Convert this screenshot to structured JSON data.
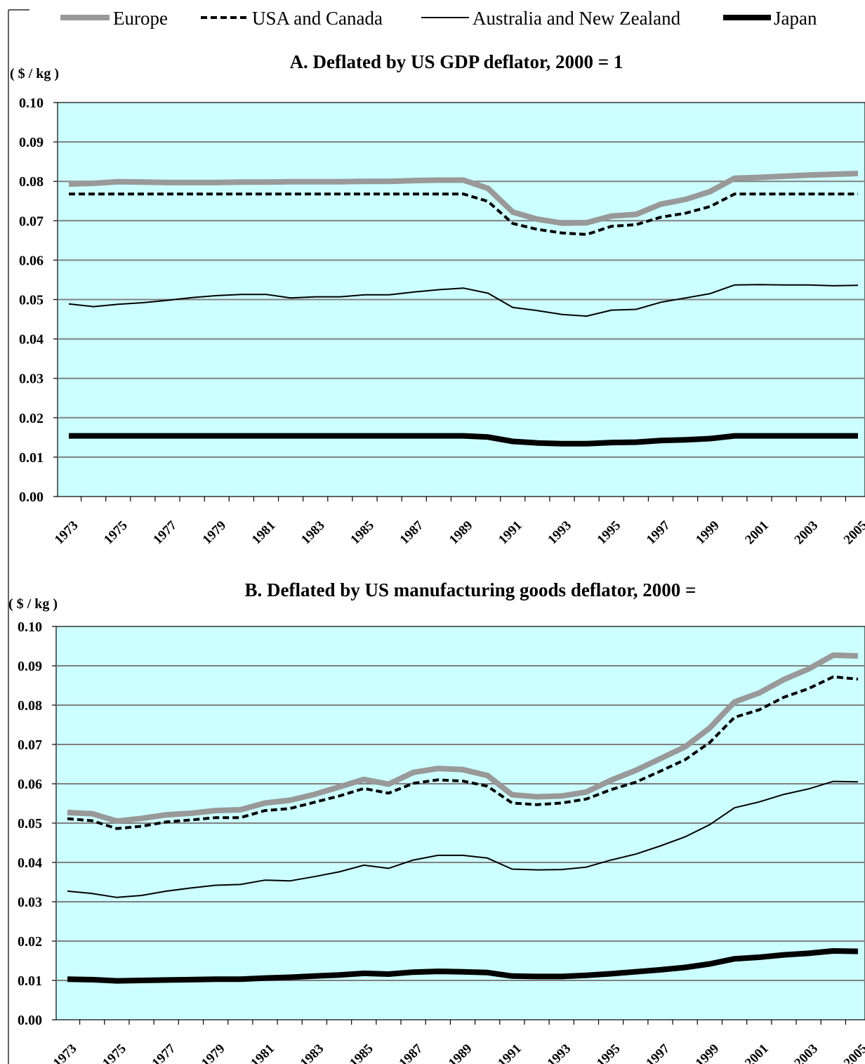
{
  "legend": [
    {
      "name": "Europe",
      "color": "#999999",
      "style": "thick-solid"
    },
    {
      "name": "USA and Canada",
      "color": "#000000",
      "style": "dashed"
    },
    {
      "name": "Australia and New Zealand",
      "color": "#000000",
      "style": "thin-solid"
    },
    {
      "name": "Japan",
      "color": "#000000",
      "style": "thick-solid"
    }
  ],
  "colors": {
    "plot_background": "#ccffff",
    "gridline": "#808080",
    "europe": "#999999",
    "black": "#000000"
  },
  "chart_data": [
    {
      "type": "line",
      "title": "A. Deflated by US GDP deflator, 2000 = 1",
      "ylabel": "( $ / kg )",
      "ylim": [
        0,
        0.1
      ],
      "yticks": [
        "0.00",
        "0.01",
        "0.02",
        "0.03",
        "0.04",
        "0.05",
        "0.06",
        "0.07",
        "0.08",
        "0.09",
        "0.10"
      ],
      "x": [
        1973,
        1974,
        1975,
        1976,
        1977,
        1978,
        1979,
        1980,
        1981,
        1982,
        1983,
        1984,
        1985,
        1986,
        1987,
        1988,
        1989,
        1990,
        1991,
        1992,
        1993,
        1994,
        1995,
        1996,
        1997,
        1998,
        1999,
        2000,
        2001,
        2002,
        2003,
        2004,
        2005
      ],
      "xticks": [
        "1973",
        "1975",
        "1977",
        "1979",
        "1981",
        "1983",
        "1985",
        "1987",
        "1989",
        "1991",
        "1993",
        "1995",
        "1997",
        "1999",
        "2001",
        "2003",
        "2005"
      ],
      "grid": true,
      "legend_position": "top",
      "series": [
        {
          "name": "Europe",
          "values": [
            0.0793,
            0.0795,
            0.0799,
            0.0798,
            0.0797,
            0.0797,
            0.0797,
            0.0798,
            0.0798,
            0.0799,
            0.0799,
            0.0799,
            0.08,
            0.08,
            0.0802,
            0.0803,
            0.0803,
            0.0782,
            0.0722,
            0.0704,
            0.0694,
            0.0695,
            0.0712,
            0.0716,
            0.0742,
            0.0754,
            0.0774,
            0.0808,
            0.081,
            0.0813,
            0.0816,
            0.0818,
            0.082
          ]
        },
        {
          "name": "USA and Canada",
          "values": [
            0.0768,
            0.0768,
            0.0768,
            0.0768,
            0.0768,
            0.0768,
            0.0768,
            0.0768,
            0.0768,
            0.0768,
            0.0768,
            0.0768,
            0.0768,
            0.0768,
            0.0768,
            0.0768,
            0.0768,
            0.0749,
            0.0693,
            0.0678,
            0.0669,
            0.0665,
            0.0686,
            0.069,
            0.0709,
            0.0719,
            0.0736,
            0.0768,
            0.0768,
            0.0768,
            0.0768,
            0.0768,
            0.0768
          ]
        },
        {
          "name": "Australia and New Zealand",
          "values": [
            0.0489,
            0.0482,
            0.0488,
            0.0492,
            0.0498,
            0.0505,
            0.051,
            0.0513,
            0.0513,
            0.0504,
            0.0507,
            0.0507,
            0.0512,
            0.0512,
            0.0519,
            0.0525,
            0.0529,
            0.0516,
            0.048,
            0.0472,
            0.0462,
            0.0458,
            0.0473,
            0.0475,
            0.0493,
            0.0504,
            0.0515,
            0.0537,
            0.0538,
            0.0537,
            0.0537,
            0.0535,
            0.0536
          ]
        },
        {
          "name": "Japan",
          "values": [
            0.0154,
            0.0154,
            0.0154,
            0.0154,
            0.0154,
            0.0154,
            0.0154,
            0.0154,
            0.0154,
            0.0154,
            0.0154,
            0.0154,
            0.0154,
            0.0154,
            0.0154,
            0.0154,
            0.0154,
            0.0151,
            0.014,
            0.0136,
            0.0134,
            0.0134,
            0.0137,
            0.0138,
            0.0142,
            0.0144,
            0.0147,
            0.0154,
            0.0154,
            0.0154,
            0.0154,
            0.0154,
            0.0154
          ]
        }
      ]
    },
    {
      "type": "line",
      "title": "B. Deflated by US manufacturing goods deflator, 2000 =",
      "ylabel": "( $ / kg )",
      "ylim": [
        0,
        0.1
      ],
      "yticks": [
        "0.00",
        "0.01",
        "0.02",
        "0.03",
        "0.04",
        "0.05",
        "0.06",
        "0.07",
        "0.08",
        "0.09",
        "0.10"
      ],
      "x": [
        1973,
        1974,
        1975,
        1976,
        1977,
        1978,
        1979,
        1980,
        1981,
        1982,
        1983,
        1984,
        1985,
        1986,
        1987,
        1988,
        1989,
        1990,
        1991,
        1992,
        1993,
        1994,
        1995,
        1996,
        1997,
        1998,
        1999,
        2000,
        2001,
        2002,
        2003,
        2004,
        2005
      ],
      "xticks": [
        "1973",
        "1975",
        "1977",
        "1979",
        "1981",
        "1983",
        "1985",
        "1987",
        "1989",
        "1991",
        "1993",
        "1995",
        "1997",
        "1999",
        "2001",
        "2003",
        "2005"
      ],
      "grid": true,
      "series": [
        {
          "name": "Europe",
          "values": [
            0.0527,
            0.0524,
            0.0505,
            0.0512,
            0.0521,
            0.0525,
            0.0532,
            0.0534,
            0.0551,
            0.0558,
            0.0573,
            0.0592,
            0.0611,
            0.0599,
            0.0629,
            0.0639,
            0.0636,
            0.0621,
            0.0572,
            0.0567,
            0.0569,
            0.0579,
            0.0609,
            0.0634,
            0.0664,
            0.0694,
            0.0742,
            0.0808,
            0.0831,
            0.0865,
            0.0892,
            0.0927,
            0.0925
          ]
        },
        {
          "name": "USA and Canada",
          "values": [
            0.0511,
            0.0506,
            0.0486,
            0.0492,
            0.0503,
            0.0508,
            0.0514,
            0.0514,
            0.0532,
            0.0537,
            0.0553,
            0.0569,
            0.0588,
            0.0576,
            0.0601,
            0.061,
            0.0607,
            0.0594,
            0.0551,
            0.0547,
            0.0551,
            0.0561,
            0.0585,
            0.0604,
            0.0632,
            0.0661,
            0.0705,
            0.0769,
            0.0788,
            0.082,
            0.0842,
            0.0872,
            0.0866
          ]
        },
        {
          "name": "Australia and New Zealand",
          "values": [
            0.0327,
            0.0321,
            0.0311,
            0.0316,
            0.0327,
            0.0335,
            0.0342,
            0.0344,
            0.0355,
            0.0353,
            0.0364,
            0.0376,
            0.0393,
            0.0385,
            0.0406,
            0.0418,
            0.0418,
            0.0411,
            0.0383,
            0.0381,
            0.0382,
            0.0388,
            0.0406,
            0.0421,
            0.0442,
            0.0465,
            0.0496,
            0.0539,
            0.0554,
            0.0573,
            0.0587,
            0.0606,
            0.0605
          ]
        },
        {
          "name": "Japan",
          "values": [
            0.0103,
            0.0102,
            0.0099,
            0.01,
            0.0101,
            0.0102,
            0.0103,
            0.0103,
            0.0106,
            0.0108,
            0.0111,
            0.0114,
            0.0118,
            0.0116,
            0.0121,
            0.0123,
            0.0122,
            0.012,
            0.0111,
            0.011,
            0.011,
            0.0113,
            0.0117,
            0.0122,
            0.0127,
            0.0133,
            0.0142,
            0.0155,
            0.0159,
            0.0165,
            0.0169,
            0.0175,
            0.0174
          ]
        }
      ]
    }
  ]
}
